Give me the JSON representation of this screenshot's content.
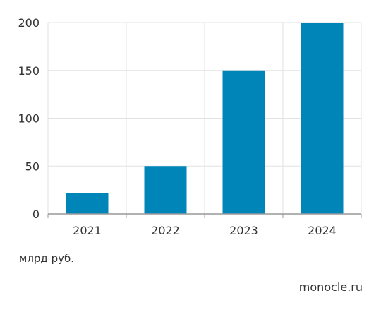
{
  "chart_data": {
    "type": "bar",
    "categories": [
      "2021",
      "2022",
      "2023",
      "2024"
    ],
    "values": [
      22,
      50,
      150,
      200
    ],
    "ylim": [
      0,
      200
    ],
    "yticks": [
      0,
      50,
      100,
      150,
      200
    ],
    "grid": true,
    "bar_color": "#0085b9",
    "unit_label": "млрд руб."
  },
  "footer": {
    "source": "monocle.ru"
  }
}
